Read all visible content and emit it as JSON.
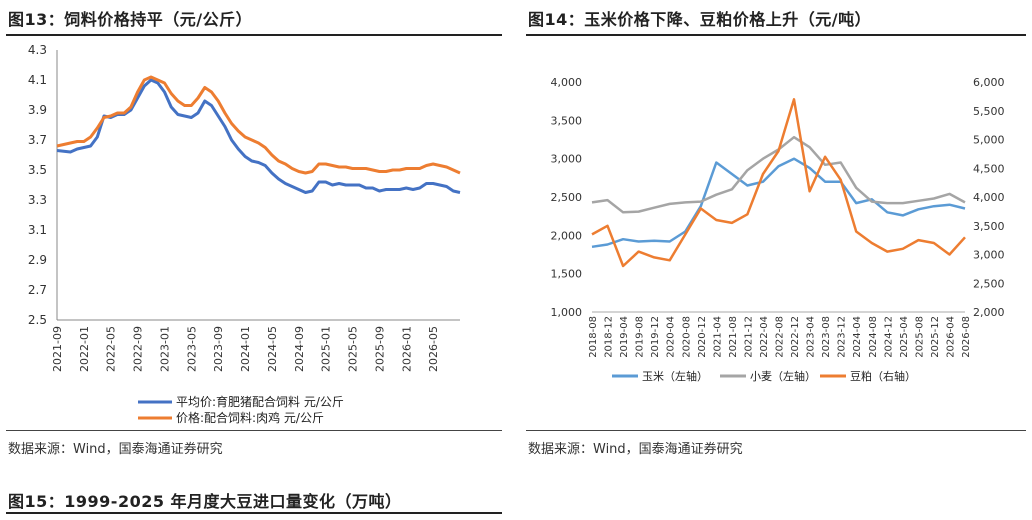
{
  "fig13": {
    "title": "图13：饲料价格持平（元/公斤）",
    "source": "数据来源：Wind，国泰海通证券研究"
  },
  "fig14": {
    "title": "图14：玉米价格下降、豆粕价格上升（元/吨）",
    "source": "数据来源：Wind，国泰海通证券研究"
  },
  "fig15": {
    "title": "图15：1999-2025 年月度大豆进口量变化（万吨）"
  },
  "chart_data": [
    {
      "type": "line",
      "ylim": [
        2.5,
        4.3
      ],
      "yticks": [
        "4.3",
        "4.1",
        "3.9",
        "3.7",
        "3.5",
        "3.3",
        "3.1",
        "2.9",
        "2.7",
        "2.5"
      ],
      "xticks": [
        "2021-09",
        "2022-01",
        "2022-05",
        "2022-09",
        "2023-01",
        "2023-05",
        "2023-09",
        "2024-01",
        "2024-05",
        "2024-09",
        "2025-01",
        "2025-05",
        "2025-09",
        "2026-01",
        "2026-05"
      ],
      "series": [
        {
          "name": "平均价:育肥猪配合饲料 元/公斤",
          "color": "#4472C4",
          "x": [
            0,
            2,
            3,
            4,
            5,
            6,
            7,
            8,
            9,
            10,
            11,
            12,
            13,
            14,
            15,
            16,
            17,
            18,
            19,
            20,
            21,
            22,
            23,
            24,
            25,
            26,
            27,
            28,
            29,
            30,
            31,
            32,
            33,
            34,
            35,
            36,
            37,
            38,
            39,
            40,
            41,
            42,
            43,
            44,
            45,
            46,
            47,
            48,
            49,
            50,
            51,
            52,
            53,
            54,
            55,
            56,
            57,
            58,
            59,
            60
          ],
          "y": [
            3.63,
            3.62,
            3.64,
            3.65,
            3.66,
            3.72,
            3.86,
            3.85,
            3.87,
            3.87,
            3.9,
            3.98,
            4.06,
            4.1,
            4.08,
            4.02,
            3.92,
            3.87,
            3.86,
            3.85,
            3.88,
            3.96,
            3.93,
            3.86,
            3.79,
            3.7,
            3.64,
            3.59,
            3.56,
            3.55,
            3.53,
            3.48,
            3.44,
            3.41,
            3.39,
            3.37,
            3.35,
            3.36,
            3.42,
            3.42,
            3.4,
            3.41,
            3.4,
            3.4,
            3.4,
            3.38,
            3.38,
            3.36,
            3.37,
            3.37,
            3.37,
            3.38,
            3.37,
            3.38,
            3.41,
            3.41,
            3.4,
            3.39,
            3.36,
            3.35
          ]
        },
        {
          "name": "价格:配合饲料:肉鸡 元/公斤",
          "color": "#ED7D31",
          "x": [
            0,
            2,
            3,
            4,
            5,
            6,
            7,
            8,
            9,
            10,
            11,
            12,
            13,
            14,
            15,
            16,
            17,
            18,
            19,
            20,
            21,
            22,
            23,
            24,
            25,
            26,
            27,
            28,
            29,
            30,
            31,
            32,
            33,
            34,
            35,
            36,
            37,
            38,
            39,
            40,
            41,
            42,
            43,
            44,
            45,
            46,
            47,
            48,
            49,
            50,
            51,
            52,
            53,
            54,
            55,
            56,
            57,
            58,
            59,
            60
          ],
          "y": [
            3.66,
            3.68,
            3.69,
            3.69,
            3.72,
            3.78,
            3.85,
            3.86,
            3.88,
            3.88,
            3.92,
            4.02,
            4.1,
            4.12,
            4.1,
            4.08,
            4.01,
            3.96,
            3.93,
            3.93,
            3.98,
            4.05,
            4.02,
            3.96,
            3.88,
            3.81,
            3.76,
            3.72,
            3.7,
            3.68,
            3.65,
            3.6,
            3.56,
            3.54,
            3.51,
            3.49,
            3.48,
            3.49,
            3.54,
            3.54,
            3.53,
            3.52,
            3.52,
            3.51,
            3.51,
            3.51,
            3.5,
            3.49,
            3.49,
            3.5,
            3.5,
            3.51,
            3.51,
            3.51,
            3.53,
            3.54,
            3.53,
            3.52,
            3.5,
            3.48
          ]
        }
      ]
    },
    {
      "type": "line",
      "ylim_left": [
        1000,
        4000
      ],
      "ylim_right": [
        2000,
        6000
      ],
      "yticks_left": [
        "4,000",
        "3,500",
        "3,000",
        "2,500",
        "2,000",
        "1,500",
        "1,000"
      ],
      "yticks_right": [
        "6,000",
        "5,500",
        "5,000",
        "4,500",
        "4,000",
        "3,500",
        "3,000",
        "2,500",
        "2,000"
      ],
      "xticks": [
        "2018-08",
        "2018-12",
        "2019-04",
        "2019-08",
        "2019-12",
        "2020-04",
        "2020-08",
        "2020-12",
        "2021-04",
        "2021-08",
        "2021-12",
        "2022-04",
        "2022-08",
        "2022-12",
        "2023-04",
        "2023-08",
        "2023-12",
        "2024-04",
        "2024-08",
        "2024-12",
        "2025-04",
        "2025-08",
        "2025-12",
        "2026-04",
        "2026-08"
      ],
      "series": [
        {
          "name": "玉米（左轴）",
          "color": "#5B9BD5",
          "axis": "left",
          "x": [
            0,
            1,
            2,
            3,
            4,
            5,
            6,
            7,
            8,
            9,
            10,
            11,
            12,
            13,
            14,
            15,
            16,
            17,
            18,
            19,
            20,
            21,
            22,
            23,
            24
          ],
          "y": [
            1850,
            1880,
            1950,
            1920,
            1930,
            1920,
            2050,
            2380,
            2950,
            2800,
            2650,
            2700,
            2900,
            3000,
            2880,
            2700,
            2700,
            2420,
            2470,
            2300,
            2260,
            2340,
            2380,
            2400,
            2350
          ]
        },
        {
          "name": "小麦（左轴）",
          "color": "#A5A5A5",
          "axis": "left",
          "x": [
            0,
            1,
            2,
            3,
            4,
            5,
            6,
            7,
            8,
            9,
            10,
            11,
            12,
            13,
            14,
            15,
            16,
            17,
            18,
            19,
            20,
            21,
            22,
            23,
            24
          ],
          "y": [
            2430,
            2460,
            2300,
            2310,
            2360,
            2410,
            2430,
            2440,
            2530,
            2600,
            2850,
            3000,
            3120,
            3280,
            3150,
            2920,
            2950,
            2620,
            2440,
            2420,
            2420,
            2450,
            2480,
            2540,
            2430
          ]
        },
        {
          "name": "豆粕（右轴）",
          "color": "#ED7D31",
          "axis": "right",
          "x": [
            0,
            1,
            2,
            3,
            4,
            5,
            6,
            7,
            8,
            9,
            10,
            11,
            12,
            13,
            14,
            15,
            16,
            17,
            18,
            19,
            20,
            21,
            22,
            23,
            24
          ],
          "y": [
            3350,
            3500,
            2800,
            3050,
            2950,
            2900,
            3350,
            3800,
            3600,
            3550,
            3700,
            4400,
            4800,
            5700,
            4100,
            4700,
            4300,
            3400,
            3200,
            3050,
            3100,
            3250,
            3200,
            3000,
            3300
          ]
        }
      ]
    }
  ]
}
